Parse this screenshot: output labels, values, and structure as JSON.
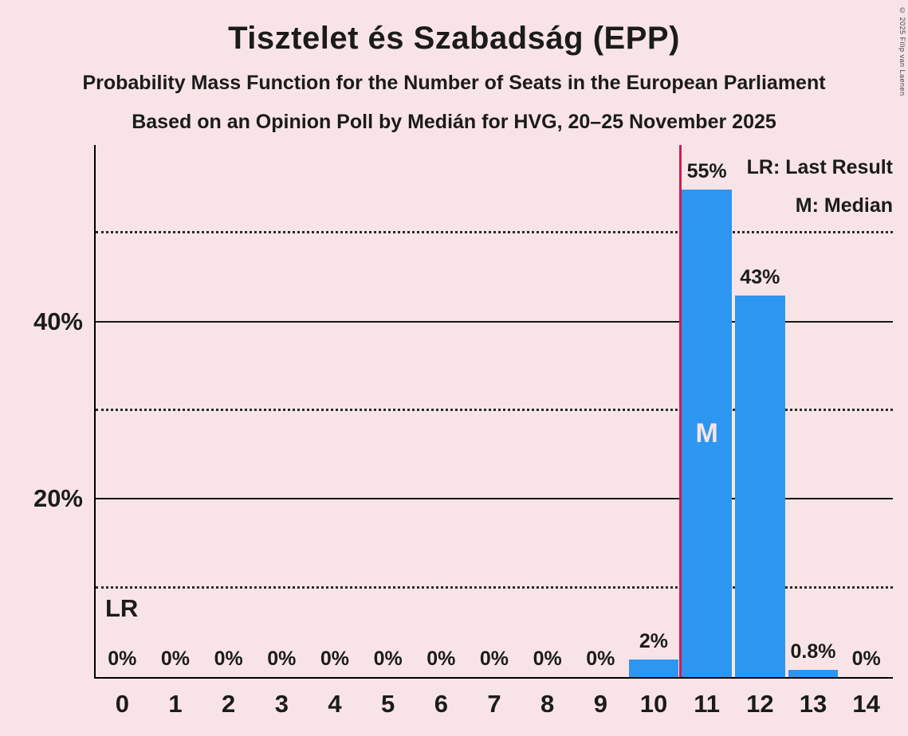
{
  "chart_data": {
    "type": "bar",
    "title": "Tisztelet és Szabadság (EPP)",
    "subtitle": "Probability Mass Function for the Number of Seats in the European Parliament",
    "subsubtitle": "Based on an Opinion Poll by Medián for HVG, 20–25 November 2025",
    "categories": [
      0,
      1,
      2,
      3,
      4,
      5,
      6,
      7,
      8,
      9,
      10,
      11,
      12,
      13,
      14
    ],
    "values": [
      0,
      0,
      0,
      0,
      0,
      0,
      0,
      0,
      0,
      0,
      2,
      55,
      43,
      0.8,
      0
    ],
    "bar_labels": [
      "0%",
      "0%",
      "0%",
      "0%",
      "0%",
      "0%",
      "0%",
      "0%",
      "0%",
      "0%",
      "2%",
      "55%",
      "43%",
      "0.8%",
      "0%"
    ],
    "xlabel": "",
    "ylabel": "",
    "ylim": [
      0,
      60
    ],
    "yticks": [
      {
        "value": 20,
        "label": "20%"
      },
      {
        "value": 40,
        "label": "40%"
      }
    ],
    "solid_gridlines": [
      20,
      40
    ],
    "dotted_gridlines": [
      10,
      30,
      50
    ],
    "grid": true,
    "legend_position": "top-right",
    "legend": {
      "lr": "LR: Last Result",
      "median": "M: Median"
    },
    "median": {
      "index": 11,
      "label": "M"
    },
    "last_result": {
      "position": 10.5,
      "label": "LR"
    }
  },
  "copyright": "© 2025 Filip van Laenen",
  "colors": {
    "background": "#f8e4e7",
    "bar": "#2d96f0",
    "lr_line": "#d01c50",
    "axis": "#000000",
    "text": "#1b1b1b",
    "median_text": "#f8e4e7"
  }
}
